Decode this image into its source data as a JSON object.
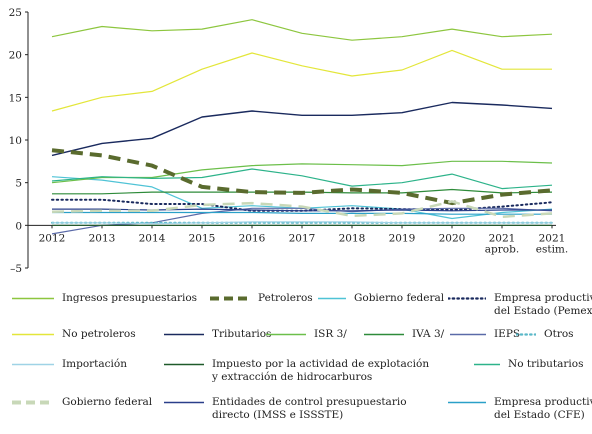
{
  "chart_data": {
    "type": "line",
    "title": "",
    "xlabel": "",
    "ylabel": "",
    "ylim": [
      -5,
      25
    ],
    "yticks": [
      "–5",
      "0",
      "5",
      "10",
      "15",
      "20",
      "25"
    ],
    "categories": [
      "2012",
      "2013",
      "2014",
      "2015",
      "2016",
      "2017",
      "2018",
      "2019",
      "2020",
      "2021\naprob.",
      "2021\nestim."
    ],
    "grid": false,
    "legend_position": "bottom",
    "series": [
      {
        "name": "Ingresos presupuestarios",
        "color": "#8dc63f",
        "style": "solid",
        "width": 1.2,
        "values": [
          22.1,
          23.3,
          22.8,
          23.0,
          24.1,
          22.5,
          21.7,
          22.1,
          23.0,
          22.1,
          22.4
        ]
      },
      {
        "name": "Petroleros",
        "color": "#5a6b2e",
        "style": "bigdash",
        "width": 4,
        "values": [
          8.8,
          8.2,
          7.0,
          4.5,
          3.9,
          3.8,
          4.2,
          3.8,
          2.6,
          3.6,
          4.1
        ]
      },
      {
        "name": "Gobierno federal",
        "color": "#4fc3d6",
        "style": "solid",
        "width": 1.2,
        "values": [
          5.7,
          5.3,
          4.5,
          2.0,
          2.3,
          2.0,
          2.3,
          1.9,
          0.8,
          1.5,
          1.9
        ]
      },
      {
        "name": "Empresa productiva\ndel Estado (Pemex)",
        "color": "#1a2a5e",
        "style": "dotted",
        "width": 2,
        "values": [
          3.0,
          3.0,
          2.5,
          2.5,
          1.7,
          1.7,
          2.0,
          1.9,
          1.8,
          2.2,
          2.7
        ]
      },
      {
        "name": "No petroleros",
        "color": "#e3e63a",
        "style": "solid",
        "width": 1.2,
        "values": [
          13.4,
          15.0,
          15.7,
          18.3,
          20.2,
          18.7,
          17.5,
          18.2,
          20.5,
          18.3,
          18.3
        ]
      },
      {
        "name": "Tributarios",
        "color": "#1a2a5e",
        "style": "solid",
        "width": 1.4,
        "values": [
          8.2,
          9.6,
          10.2,
          12.7,
          13.4,
          12.9,
          12.9,
          13.2,
          14.4,
          14.1,
          13.7
        ]
      },
      {
        "name": "ISR 3/",
        "color": "#6cbf4a",
        "style": "solid",
        "width": 1.2,
        "values": [
          5.0,
          5.6,
          5.6,
          6.5,
          7.0,
          7.2,
          7.1,
          7.0,
          7.5,
          7.5,
          7.3
        ]
      },
      {
        "name": "IVA 3/",
        "color": "#2e8b3a",
        "style": "solid",
        "width": 1.2,
        "values": [
          3.7,
          3.7,
          3.9,
          3.9,
          3.9,
          3.9,
          3.8,
          3.8,
          4.2,
          3.8,
          3.9
        ]
      },
      {
        "name": "IEPS",
        "color": "#5a6aa8",
        "style": "solid",
        "width": 1.2,
        "values": [
          -1.0,
          0.0,
          0.3,
          1.4,
          2.0,
          2.0,
          1.6,
          1.9,
          2.0,
          2.0,
          1.7
        ]
      },
      {
        "name": "Otros",
        "color": "#5ab8c8",
        "style": "dotted",
        "width": 2,
        "values": [
          0.3,
          0.3,
          0.3,
          0.3,
          0.3,
          0.3,
          0.3,
          0.3,
          0.3,
          0.3,
          0.3
        ]
      },
      {
        "name": "Importación",
        "color": "#9fd3e6",
        "style": "solid",
        "width": 1.2,
        "values": [
          0.3,
          0.3,
          0.2,
          0.3,
          0.4,
          0.4,
          0.4,
          0.3,
          0.3,
          0.3,
          0.3
        ]
      },
      {
        "name": "Impuesto por la actividad de explotación\ny extracción de hidrocarburos",
        "color": "#1f5a2a",
        "style": "solid",
        "width": 1.2,
        "values": [
          0.0,
          0.0,
          0.0,
          0.0,
          0.0,
          0.0,
          0.0,
          0.0,
          0.0,
          0.0,
          0.0
        ]
      },
      {
        "name": "No tributarios",
        "color": "#2db38a",
        "style": "solid",
        "width": 1.2,
        "values": [
          5.2,
          5.7,
          5.5,
          5.6,
          6.6,
          5.8,
          4.6,
          5.0,
          6.0,
          4.3,
          4.7
        ]
      },
      {
        "name": "Gobierno federal",
        "color": "#c8d8b8",
        "style": "bigdash",
        "width": 2.5,
        "values": [
          1.6,
          1.7,
          1.7,
          2.4,
          2.6,
          2.2,
          1.1,
          1.4,
          2.8,
          1.0,
          1.4
        ]
      },
      {
        "name": "Entidades de control presupuestario\ndirecto (IMSS e ISSSTE)",
        "color": "#2a3f8a",
        "style": "solid",
        "width": 1.2,
        "values": [
          1.9,
          1.9,
          1.8,
          1.9,
          1.8,
          1.7,
          1.7,
          1.8,
          1.7,
          1.8,
          1.8
        ]
      },
      {
        "name": "Empresa productiva\ndel Estado (CFE)",
        "color": "#2aa0c8",
        "style": "solid",
        "width": 1.2,
        "values": [
          1.5,
          1.5,
          1.5,
          1.5,
          1.5,
          1.4,
          1.4,
          1.4,
          1.3,
          1.3,
          1.3
        ]
      }
    ]
  }
}
